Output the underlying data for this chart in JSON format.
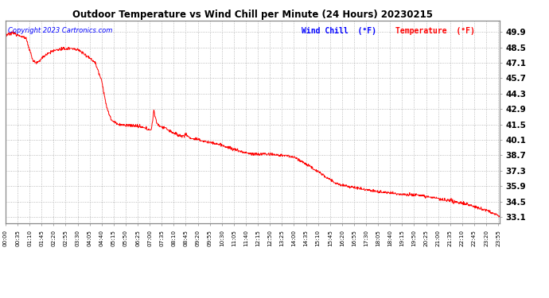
{
  "title": "Outdoor Temperature vs Wind Chill per Minute (24 Hours) 20230215",
  "copyright_text": "Copyright 2023 Cartronics.com",
  "legend_wind_chill": "Wind Chill  (°F)",
  "legend_temperature": "Temperature  (°F)",
  "wind_chill_color": "blue",
  "temperature_color": "red",
  "line_color": "red",
  "background_color": "#ffffff",
  "plot_bg_color": "#ffffff",
  "grid_color": "#aaaaaa",
  "title_color": "#000000",
  "ylim": [
    32.5,
    50.9
  ],
  "yticks": [
    33.1,
    34.5,
    35.9,
    37.3,
    38.7,
    40.1,
    41.5,
    42.9,
    44.3,
    45.7,
    47.1,
    48.5,
    49.9
  ],
  "num_minutes": 1440,
  "x_tick_positions": [
    0,
    35,
    70,
    105,
    140,
    175,
    210,
    245,
    280,
    315,
    350,
    385,
    420,
    455,
    490,
    525,
    560,
    595,
    630,
    665,
    700,
    735,
    770,
    805,
    840,
    875,
    910,
    945,
    980,
    1015,
    1050,
    1085,
    1120,
    1155,
    1190,
    1225,
    1260,
    1295,
    1330,
    1365,
    1400,
    1435
  ],
  "x_tick_labels": [
    "00:00",
    "00:35",
    "01:10",
    "01:45",
    "02:20",
    "02:55",
    "03:30",
    "04:05",
    "04:40",
    "05:15",
    "05:50",
    "06:25",
    "07:00",
    "07:35",
    "08:10",
    "08:45",
    "09:20",
    "09:55",
    "10:30",
    "11:05",
    "11:40",
    "12:15",
    "12:50",
    "13:25",
    "14:00",
    "14:35",
    "15:10",
    "15:45",
    "16:20",
    "16:55",
    "17:30",
    "18:05",
    "18:40",
    "19:15",
    "19:50",
    "20:25",
    "21:00",
    "21:35",
    "22:10",
    "22:45",
    "23:20",
    "23:55"
  ],
  "keypoints": [
    [
      0,
      49.5
    ],
    [
      10,
      49.7
    ],
    [
      20,
      49.8
    ],
    [
      40,
      49.6
    ],
    [
      60,
      49.3
    ],
    [
      80,
      47.3
    ],
    [
      90,
      47.0
    ],
    [
      105,
      47.5
    ],
    [
      120,
      47.9
    ],
    [
      150,
      48.3
    ],
    [
      190,
      48.4
    ],
    [
      210,
      48.3
    ],
    [
      230,
      47.9
    ],
    [
      250,
      47.4
    ],
    [
      260,
      47.2
    ],
    [
      280,
      45.5
    ],
    [
      295,
      43.0
    ],
    [
      310,
      41.8
    ],
    [
      330,
      41.5
    ],
    [
      355,
      41.4
    ],
    [
      370,
      41.4
    ],
    [
      390,
      41.3
    ],
    [
      410,
      41.1
    ],
    [
      425,
      41.0
    ],
    [
      432,
      42.8
    ],
    [
      440,
      41.6
    ],
    [
      452,
      41.3
    ],
    [
      465,
      41.2
    ],
    [
      478,
      40.9
    ],
    [
      490,
      40.7
    ],
    [
      505,
      40.5
    ],
    [
      515,
      40.4
    ],
    [
      525,
      40.6
    ],
    [
      535,
      40.3
    ],
    [
      548,
      40.2
    ],
    [
      560,
      40.1
    ],
    [
      575,
      40.0
    ],
    [
      590,
      39.9
    ],
    [
      605,
      39.8
    ],
    [
      620,
      39.7
    ],
    [
      640,
      39.5
    ],
    [
      660,
      39.3
    ],
    [
      680,
      39.1
    ],
    [
      700,
      38.9
    ],
    [
      720,
      38.8
    ],
    [
      740,
      38.8
    ],
    [
      760,
      38.8
    ],
    [
      780,
      38.75
    ],
    [
      800,
      38.7
    ],
    [
      820,
      38.65
    ],
    [
      840,
      38.5
    ],
    [
      860,
      38.2
    ],
    [
      880,
      37.8
    ],
    [
      900,
      37.4
    ],
    [
      920,
      37.0
    ],
    [
      940,
      36.6
    ],
    [
      960,
      36.2
    ],
    [
      980,
      36.0
    ],
    [
      1000,
      35.85
    ],
    [
      1020,
      35.75
    ],
    [
      1050,
      35.6
    ],
    [
      1080,
      35.4
    ],
    [
      1110,
      35.3
    ],
    [
      1140,
      35.2
    ],
    [
      1170,
      35.15
    ],
    [
      1200,
      35.1
    ],
    [
      1220,
      35.0
    ],
    [
      1240,
      34.9
    ],
    [
      1260,
      34.75
    ],
    [
      1280,
      34.6
    ],
    [
      1300,
      34.55
    ],
    [
      1320,
      34.4
    ],
    [
      1340,
      34.3
    ],
    [
      1360,
      34.1
    ],
    [
      1380,
      33.9
    ],
    [
      1400,
      33.7
    ],
    [
      1415,
      33.5
    ],
    [
      1425,
      33.35
    ],
    [
      1435,
      33.2
    ],
    [
      1439,
      33.1
    ]
  ]
}
